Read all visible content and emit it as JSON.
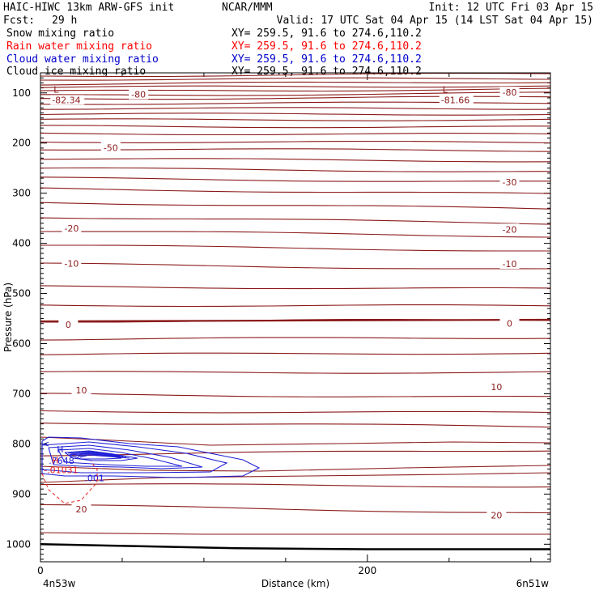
{
  "header": {
    "model": "HAIC-HIWC 13km ARW-GFS init",
    "org": "NCAR/MMM",
    "init": "Init: 12 UTC Fri 03 Apr 15",
    "fcst_label": "Fcst:",
    "fcst_value": "29 h",
    "valid": "Valid: 17 UTC Sat 04 Apr 15 (14 LST Sat 04 Apr 15)"
  },
  "fields": [
    {
      "label": "Snow mixing ratio",
      "xy": "XY= 259.5, 91.6 to 274.6,110.2",
      "color": "#000000"
    },
    {
      "label": "Rain water mixing ratio",
      "xy": "XY= 259.5, 91.6 to 274.6,110.2",
      "color": "#ff0000"
    },
    {
      "label": "Cloud water mixing ratio",
      "xy": "XY= 259.5, 91.6 to 274.6,110.2",
      "color": "#0000cc"
    },
    {
      "label": "Cloud ice mixing ratio",
      "xy": "XY= 259.5, 91.6 to 274.6,110.2",
      "color": "#000000"
    }
  ],
  "colors": {
    "temperature": "#8b1a1a",
    "cloud_water": "#1f1fd6",
    "rain_water": "#ee2222",
    "terrain": "#000000",
    "frame": "#000000"
  },
  "chart_data": {
    "type": "contour",
    "ylabel": "Pressure (hPa)",
    "xlabel": "Distance (km)",
    "x_start_label": "4n53w",
    "x_end_label": "6n51w",
    "xlim": [
      0,
      312
    ],
    "ylim": [
      1035,
      60
    ],
    "x_ticks": [
      0,
      200
    ],
    "y_ticks": [
      100,
      200,
      300,
      400,
      500,
      600,
      700,
      800,
      900,
      1000
    ],
    "temperature_labels": [
      {
        "text": "-80",
        "x": 60,
        "p": 103
      },
      {
        "text": "-80",
        "x": 287,
        "p": 99
      },
      {
        "text": "-50",
        "x": 43,
        "p": 209
      },
      {
        "text": "-30",
        "x": 287,
        "p": 278
      },
      {
        "text": "-20",
        "x": 19,
        "p": 370
      },
      {
        "text": "-20",
        "x": 287,
        "p": 372
      },
      {
        "text": "-10",
        "x": 19,
        "p": 440
      },
      {
        "text": "-10",
        "x": 287,
        "p": 441
      },
      {
        "text": "0",
        "x": 17,
        "p": 562
      },
      {
        "text": "0",
        "x": 287,
        "p": 560
      },
      {
        "text": "10",
        "x": 25,
        "p": 693
      },
      {
        "text": "10",
        "x": 279,
        "p": 686
      },
      {
        "text": "20",
        "x": 25,
        "p": 930
      },
      {
        "text": "20",
        "x": 279,
        "p": 942
      }
    ],
    "lows": [
      {
        "marker": "L",
        "value": "-82.34",
        "x": 10,
        "p": 88
      },
      {
        "marker": "L",
        "value": "-81.66",
        "x": 248,
        "p": 88
      }
    ],
    "cloud_water_max": {
      "marker": "H",
      "value": ".7648",
      "x": 11,
      "p": 812
    },
    "cloud_water_contour_label": {
      "text": ".001",
      "x": 33,
      "p": 868
    },
    "rain_water_extreme": {
      "marker": "H",
      "value": "-.01031",
      "x": 8,
      "p": 836
    },
    "terrain_surface": [
      [
        0,
        1000
      ],
      [
        60,
        1004
      ],
      [
        120,
        1008
      ],
      [
        200,
        1010
      ],
      [
        312,
        1010
      ]
    ]
  }
}
